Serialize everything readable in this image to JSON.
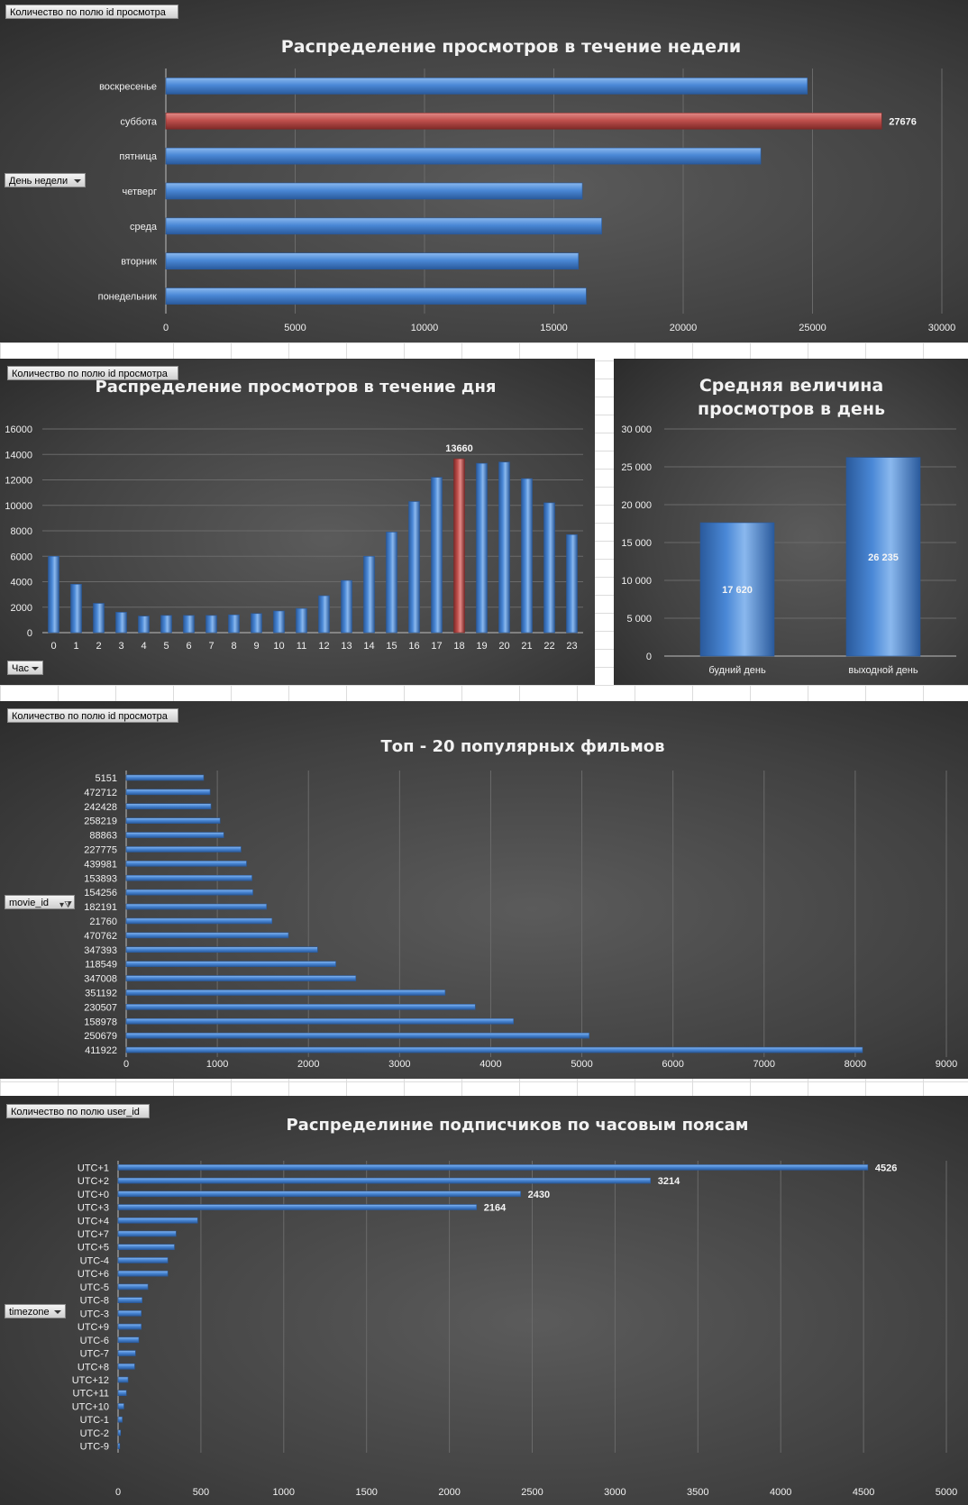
{
  "colors": {
    "bar": "#4a88d6",
    "bar_light": "#8ab8ee",
    "bar_dark": "#2a5a9c",
    "highlight": "#c0504d",
    "highlight_light": "#e28a87",
    "highlight_dark": "#7f2a28",
    "grid": "#6a6a6a"
  },
  "pivot_fields": {
    "value_views": "Количество по полю id просмотра",
    "value_users": "Количество по полю user_id",
    "weekday": "День недели",
    "hour": "Час",
    "movie": "movie_id",
    "timezone": "timezone"
  },
  "chart_data": [
    {
      "id": "week",
      "type": "bar",
      "orientation": "horizontal",
      "title": "Распределение просмотров в течение недели",
      "categories": [
        "воскресенье",
        "суббота",
        "пятница",
        "четверг",
        "среда",
        "вторник",
        "понедельник"
      ],
      "values": [
        24800,
        27676,
        23000,
        16100,
        16850,
        15950,
        16250
      ],
      "highlight_index": 1,
      "data_labels": {
        "1": "27676"
      },
      "xlim": [
        0,
        30000
      ],
      "ticks": [
        0,
        5000,
        10000,
        15000,
        20000,
        25000,
        30000
      ],
      "tick_labels": [
        "0",
        "5000",
        "10000",
        "15000",
        "20000",
        "25000",
        "30000"
      ],
      "grid": true
    },
    {
      "id": "hour",
      "type": "bar",
      "orientation": "vertical",
      "title": "Распределение просмотров в течение дня",
      "categories": [
        "0",
        "1",
        "2",
        "3",
        "4",
        "5",
        "6",
        "7",
        "8",
        "9",
        "10",
        "11",
        "12",
        "13",
        "14",
        "15",
        "16",
        "17",
        "18",
        "19",
        "20",
        "21",
        "22",
        "23"
      ],
      "values": [
        6000,
        3800,
        2300,
        1600,
        1300,
        1350,
        1350,
        1350,
        1400,
        1500,
        1700,
        1900,
        2900,
        4100,
        6000,
        7900,
        10300,
        12200,
        13660,
        13300,
        13400,
        12100,
        10200,
        7700
      ],
      "highlight_index": 18,
      "data_labels": {
        "18": "13660"
      },
      "ylim": [
        0,
        16000
      ],
      "ticks": [
        0,
        2000,
        4000,
        6000,
        8000,
        10000,
        12000,
        14000,
        16000
      ],
      "tick_labels": [
        "0",
        "2000",
        "4000",
        "6000",
        "8000",
        "10000",
        "12000",
        "14000",
        "16000"
      ],
      "grid": true
    },
    {
      "id": "avg",
      "type": "bar",
      "orientation": "vertical",
      "title_lines": [
        "Средняя величина",
        "просмотров в день"
      ],
      "categories": [
        "будний день",
        "выходной день"
      ],
      "values": [
        17620,
        26235
      ],
      "data_labels": {
        "0": "17 620",
        "1": "26 235"
      },
      "ylim": [
        0,
        30000
      ],
      "ticks": [
        0,
        5000,
        10000,
        15000,
        20000,
        25000,
        30000
      ],
      "tick_labels": [
        "0",
        "5 000",
        "10 000",
        "15 000",
        "20 000",
        "25 000",
        "30 000"
      ],
      "grid": true
    },
    {
      "id": "movies",
      "type": "bar",
      "orientation": "horizontal",
      "title": "Топ - 20 популярных фильмов",
      "categories": [
        "5151",
        "472712",
        "242428",
        "258219",
        "88863",
        "227775",
        "439981",
        "153893",
        "154256",
        "182191",
        "21760",
        "470762",
        "347393",
        "118549",
        "347008",
        "351192",
        "230507",
        "158978",
        "250679",
        "411922"
      ],
      "values": [
        850,
        920,
        930,
        1030,
        1070,
        1260,
        1320,
        1380,
        1390,
        1540,
        1600,
        1780,
        2100,
        2300,
        2520,
        3500,
        3830,
        4250,
        5080,
        8080
      ],
      "xlim": [
        0,
        9000
      ],
      "ticks": [
        0,
        1000,
        2000,
        3000,
        4000,
        5000,
        6000,
        7000,
        8000,
        9000
      ],
      "tick_labels": [
        "0",
        "1000",
        "2000",
        "3000",
        "4000",
        "5000",
        "6000",
        "7000",
        "8000",
        "9000"
      ],
      "grid": true
    },
    {
      "id": "tz",
      "type": "bar",
      "orientation": "horizontal",
      "title": "Распределиние подписчиков по часовым поясам",
      "categories": [
        "UTC+1",
        "UTC+2",
        "UTC+0",
        "UTC+3",
        "UTC+4",
        "UTC+7",
        "UTC+5",
        "UTC-4",
        "UTC+6",
        "UTC-5",
        "UTC-8",
        "UTC-3",
        "UTC+9",
        "UTC-6",
        "UTC-7",
        "UTC+8",
        "UTC+12",
        "UTC+11",
        "UTC+10",
        "UTC-1",
        "UTC-2",
        "UTC-9"
      ],
      "values": [
        4526,
        3214,
        2430,
        2164,
        480,
        350,
        340,
        300,
        300,
        180,
        145,
        140,
        140,
        125,
        105,
        100,
        60,
        50,
        35,
        25,
        15,
        10
      ],
      "data_labels": {
        "0": "4526",
        "1": "3214",
        "2": "2430",
        "3": "2164"
      },
      "xlim": [
        0,
        5000
      ],
      "ticks": [
        0,
        500,
        1000,
        1500,
        2000,
        2500,
        3000,
        3500,
        4000,
        4500,
        5000
      ],
      "tick_labels": [
        "0",
        "500",
        "1000",
        "1500",
        "2000",
        "2500",
        "3000",
        "3500",
        "4000",
        "4500",
        "5000"
      ],
      "grid": true
    }
  ]
}
